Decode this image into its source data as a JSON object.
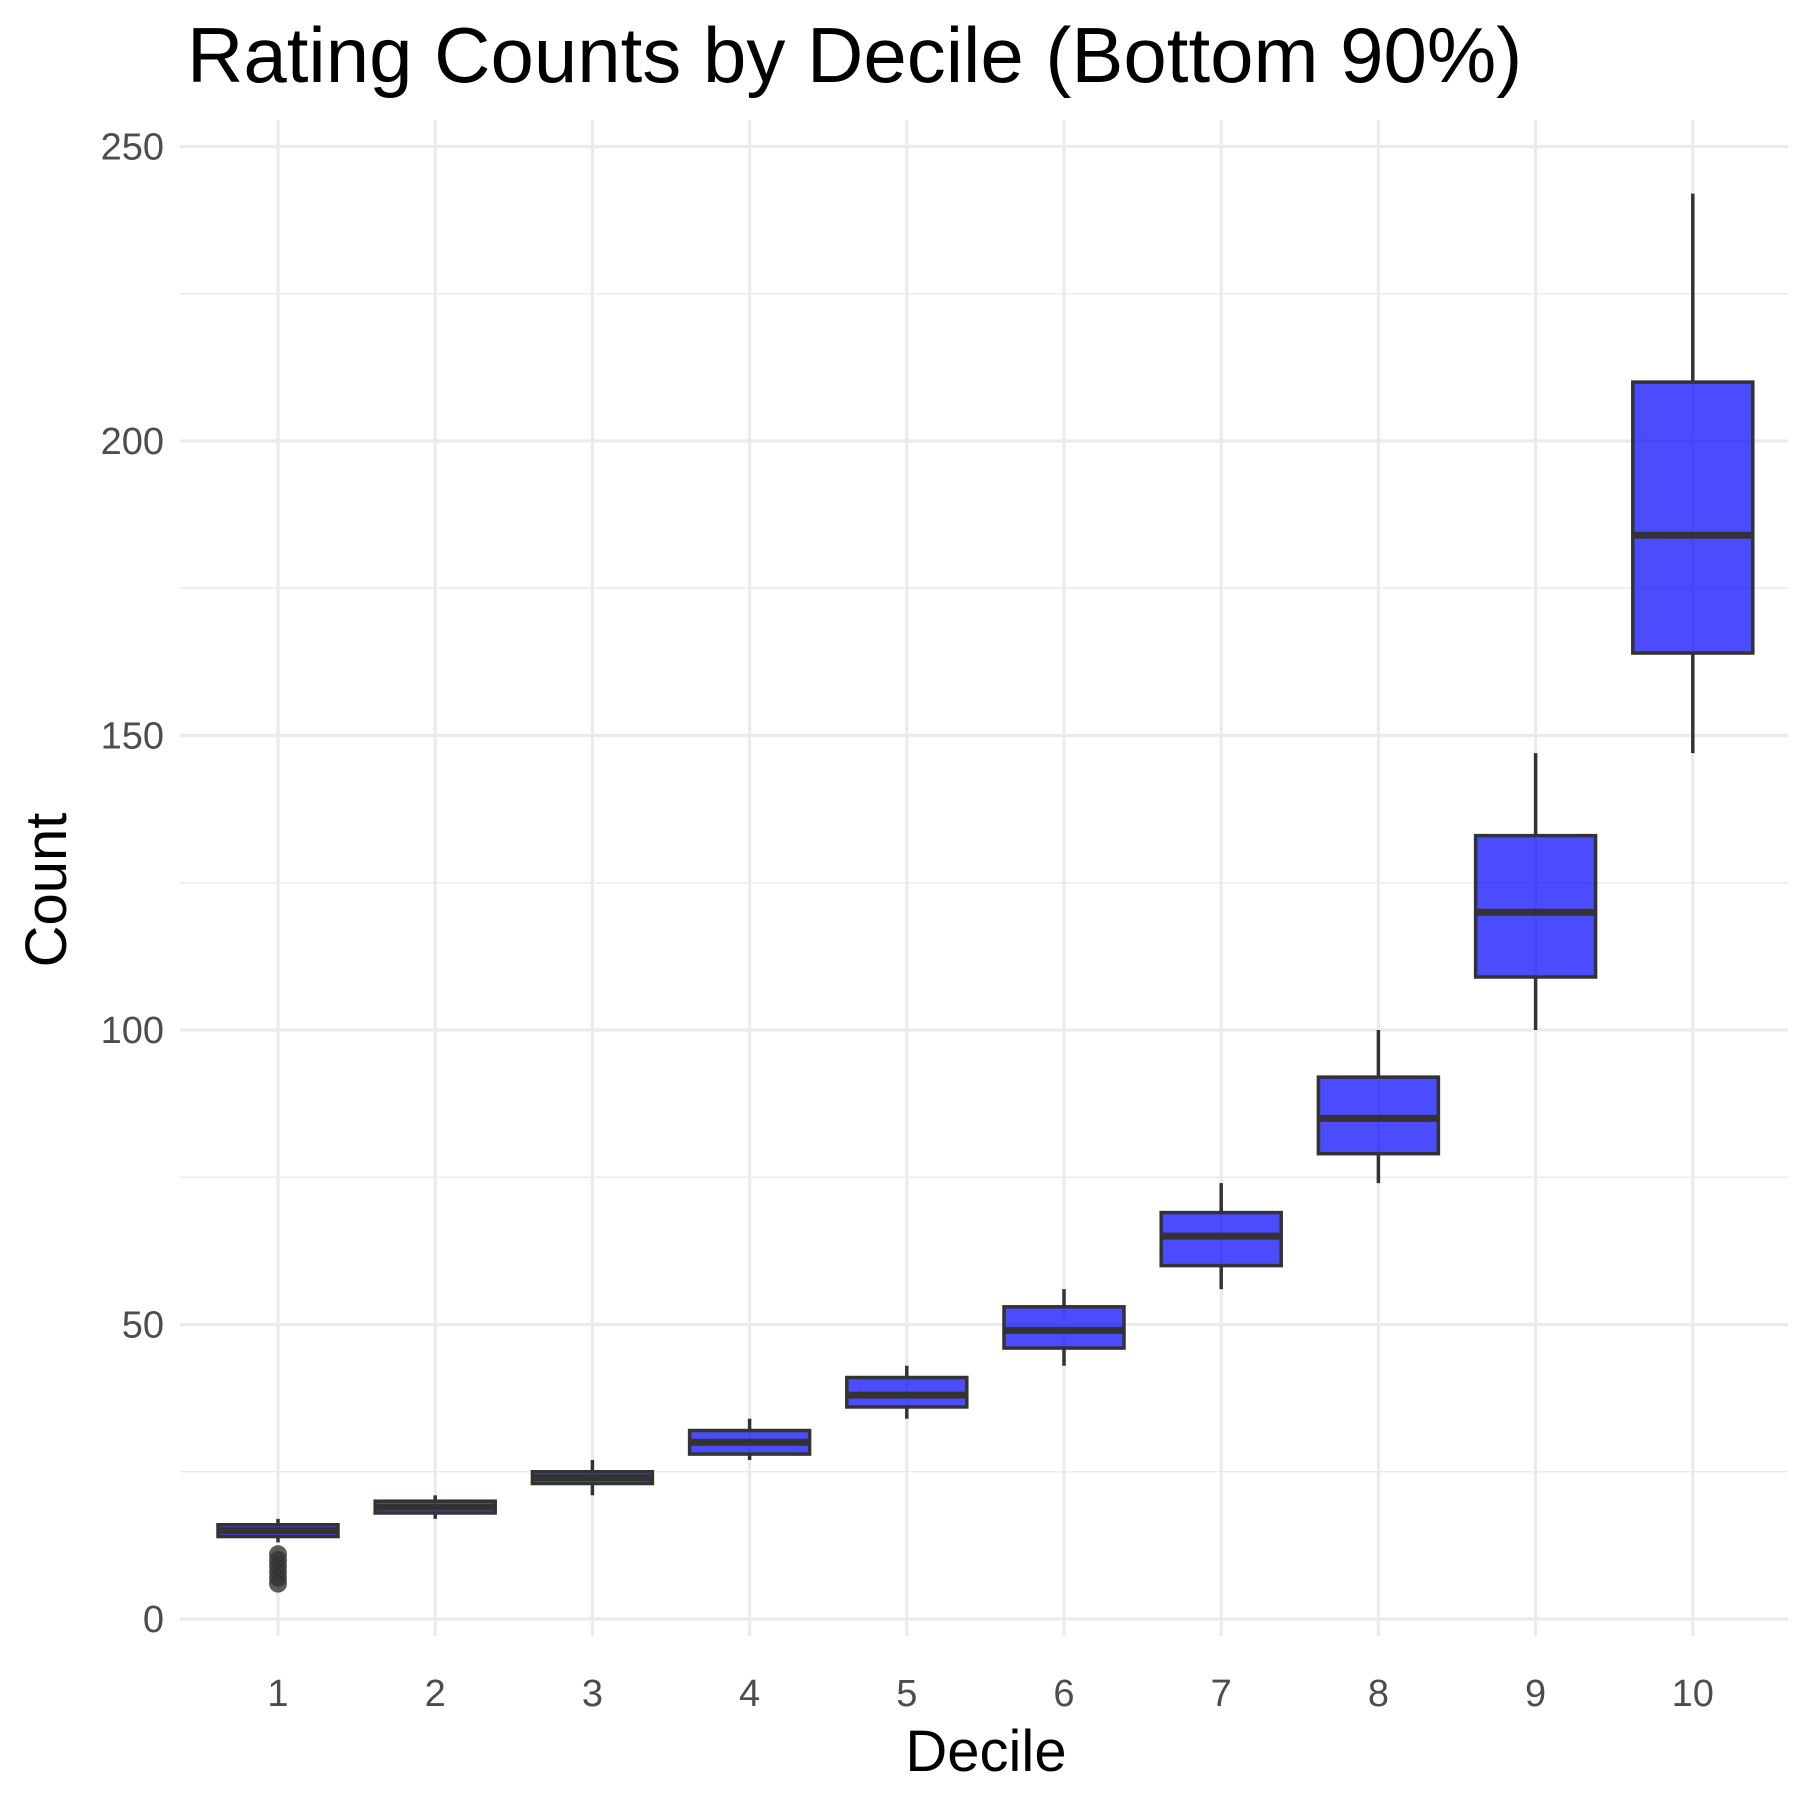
{
  "chart_data": {
    "type": "box",
    "title": "Rating Counts by Decile (Bottom 90%)",
    "xlabel": "Decile",
    "ylabel": "Count",
    "ylim": [
      -3,
      252
    ],
    "yticks": [
      0,
      50,
      100,
      150,
      200,
      250
    ],
    "y_minor_ticks": [
      25,
      75,
      125,
      175,
      225
    ],
    "grid": true,
    "fill_color": "#0000ff",
    "fill_opacity": 0.7,
    "line_color": "#333333",
    "categories": [
      "1",
      "2",
      "3",
      "4",
      "5",
      "6",
      "7",
      "8",
      "9",
      "10"
    ],
    "boxes": [
      {
        "category": "1",
        "whisker_low": 13,
        "q1": 14,
        "median": 15,
        "q3": 16,
        "whisker_high": 17,
        "outliers": [
          6,
          7,
          8,
          9,
          10,
          11
        ]
      },
      {
        "category": "2",
        "whisker_low": 17,
        "q1": 18,
        "median": 19,
        "q3": 20,
        "whisker_high": 21,
        "outliers": []
      },
      {
        "category": "3",
        "whisker_low": 21,
        "q1": 23,
        "median": 24,
        "q3": 25,
        "whisker_high": 27,
        "outliers": []
      },
      {
        "category": "4",
        "whisker_low": 27,
        "q1": 28,
        "median": 30,
        "q3": 32,
        "whisker_high": 34,
        "outliers": []
      },
      {
        "category": "5",
        "whisker_low": 34,
        "q1": 36,
        "median": 38,
        "q3": 41,
        "whisker_high": 43,
        "outliers": []
      },
      {
        "category": "6",
        "whisker_low": 43,
        "q1": 46,
        "median": 49,
        "q3": 53,
        "whisker_high": 56,
        "outliers": []
      },
      {
        "category": "7",
        "whisker_low": 56,
        "q1": 60,
        "median": 65,
        "q3": 69,
        "whisker_high": 74,
        "outliers": []
      },
      {
        "category": "8",
        "whisker_low": 74,
        "q1": 79,
        "median": 85,
        "q3": 92,
        "whisker_high": 100,
        "outliers": []
      },
      {
        "category": "9",
        "whisker_low": 100,
        "q1": 109,
        "median": 120,
        "q3": 133,
        "whisker_high": 147,
        "outliers": []
      },
      {
        "category": "10",
        "whisker_low": 147,
        "q1": 164,
        "median": 184,
        "q3": 210,
        "whisker_high": 242,
        "outliers": []
      }
    ]
  }
}
